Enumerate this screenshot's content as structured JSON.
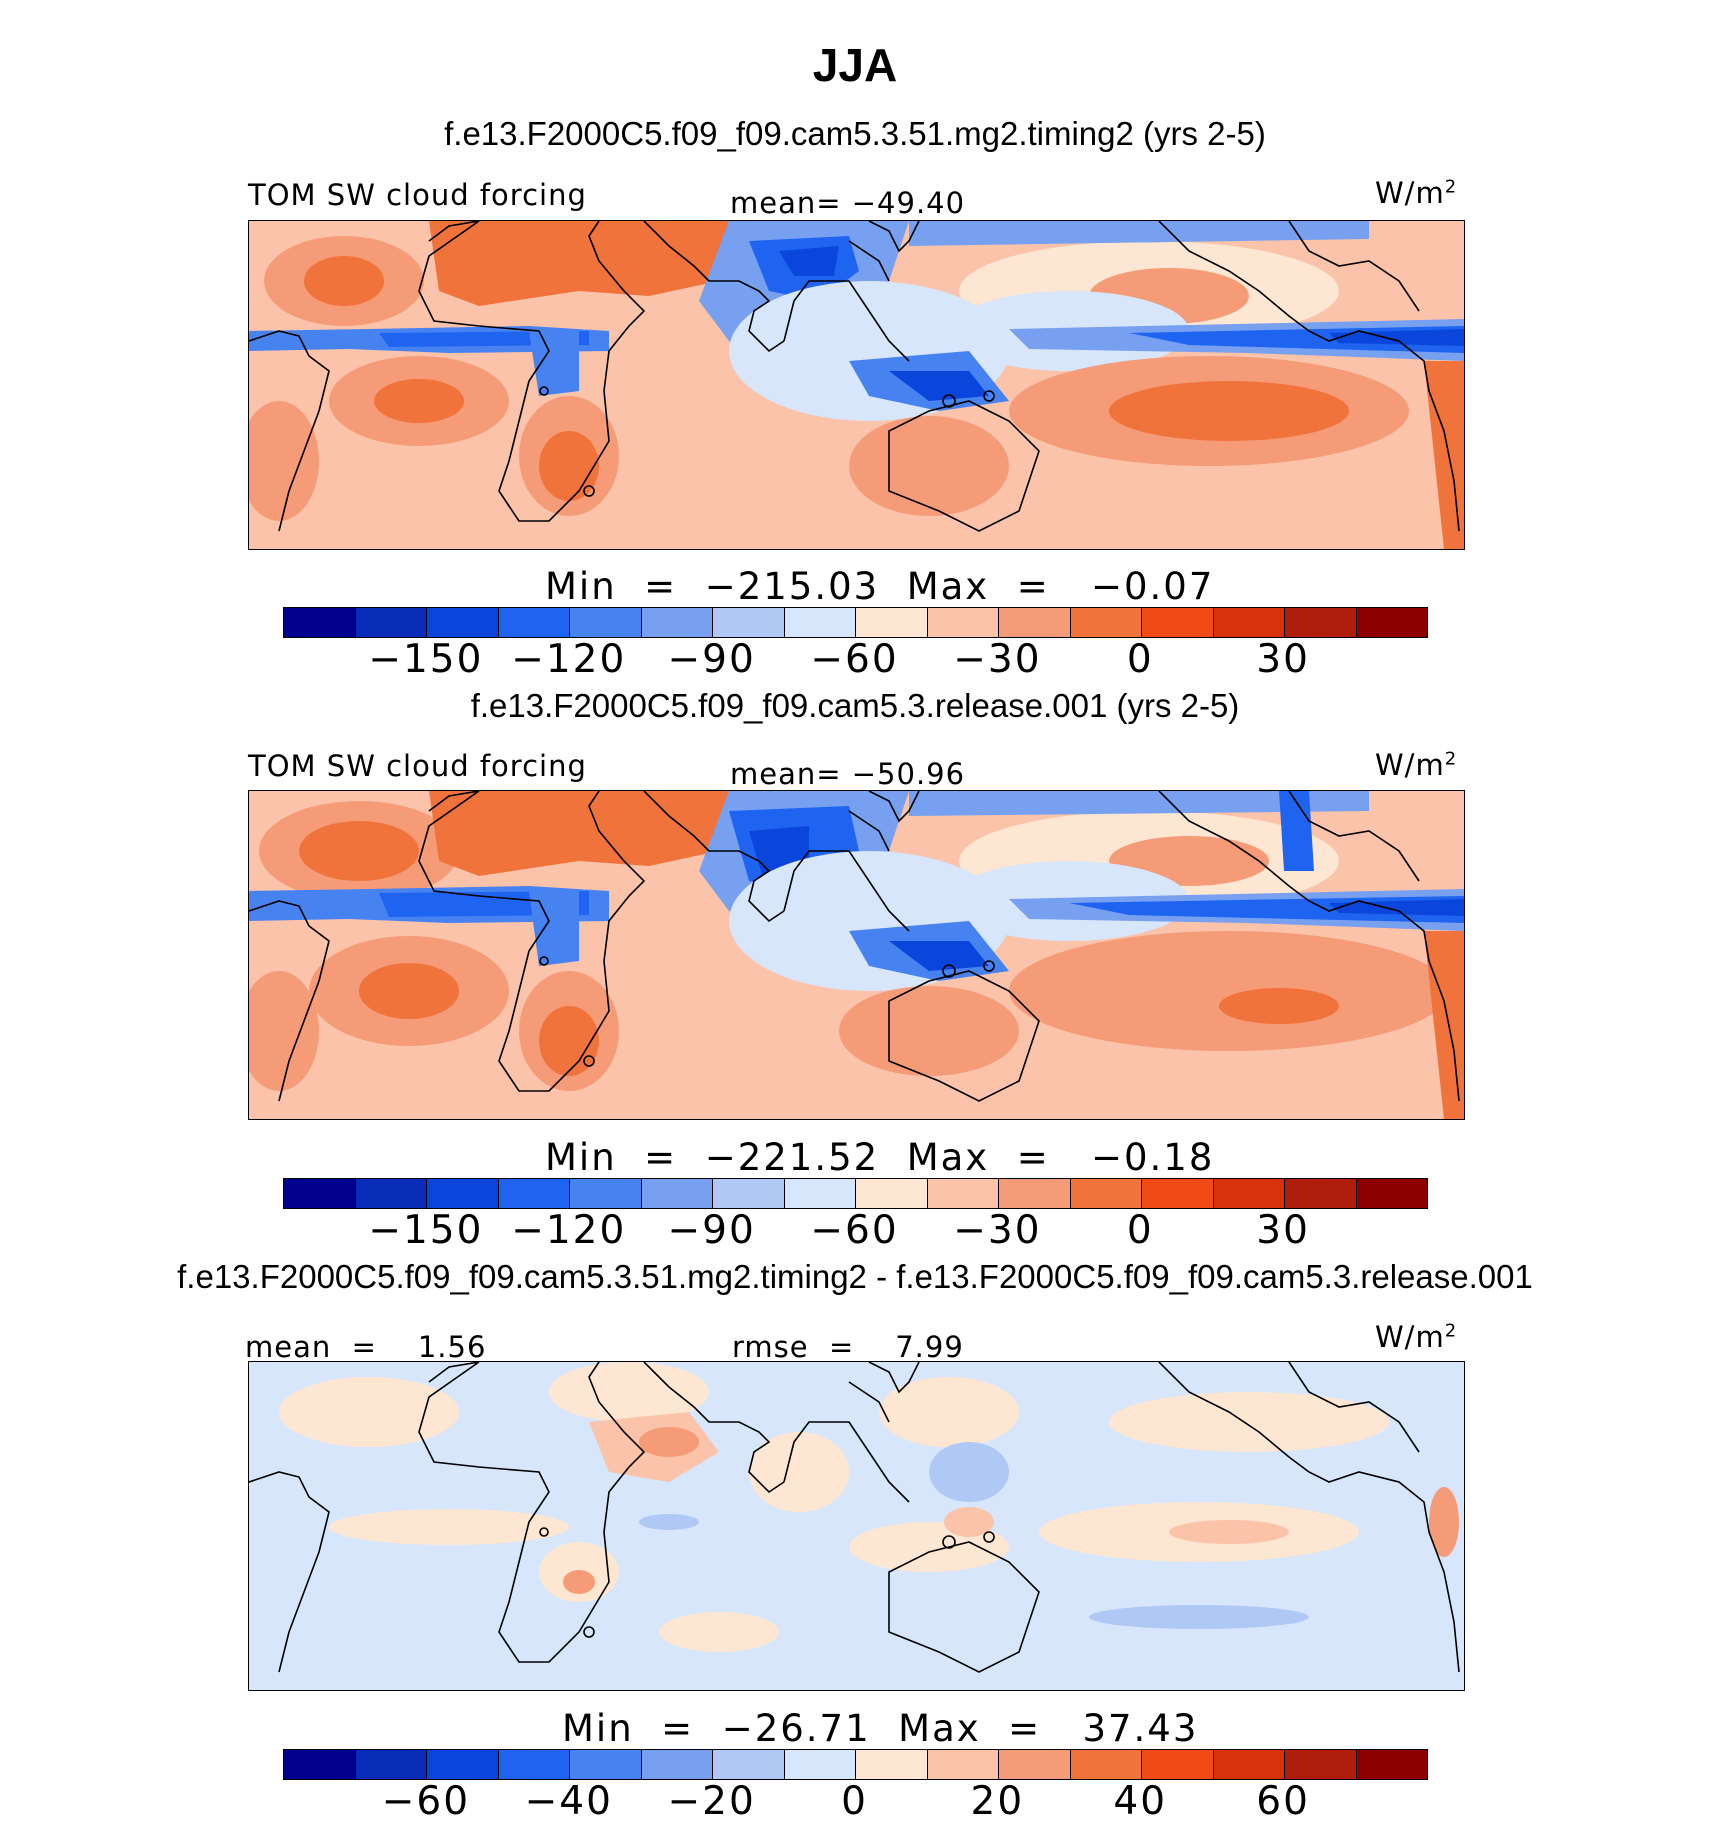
{
  "title": "JJA",
  "panels": [
    {
      "case": "f.e13.F2000C5.f09_f09.cam5.3.51.mg2.timing2 (yrs 2-5)",
      "left_label": "TOM SW cloud forcing",
      "center_label": "mean= −49.40",
      "units": "W/m",
      "units_sup": "2",
      "min_max": "Min  =  −215.03  Max  =   −0.07"
    },
    {
      "case": "f.e13.F2000C5.f09_f09.cam5.3.release.001 (yrs 2-5)",
      "left_label": "TOM SW cloud forcing",
      "center_label": "mean= −50.96",
      "units": "W/m",
      "units_sup": "2",
      "min_max": "Min  =  −221.52  Max  =   −0.18"
    },
    {
      "case": "f.e13.F2000C5.f09_f09.cam5.3.51.mg2.timing2 - f.e13.F2000C5.f09_f09.cam5.3.release.001",
      "left_label": "mean  =    1.56",
      "center_label": "rmse  =    7.99",
      "units": "W/m",
      "units_sup": "2",
      "min_max": "Min  =  −26.71  Max  =   37.43"
    }
  ],
  "colorbar_colors": [
    "#00008c",
    "#0a2db9",
    "#0a46dc",
    "#1e64f0",
    "#4682f0",
    "#78a0f0",
    "#afc8f5",
    "#d7e6fa",
    "#fde6d2",
    "#fac3aa",
    "#f59b78",
    "#f0733c",
    "#f04b14",
    "#d7320a",
    "#af1e0a",
    "#8c0000"
  ],
  "colorbar_ticks_main": [
    "−150",
    "−120",
    "−90",
    "−60",
    "−30",
    "0",
    "30"
  ],
  "colorbar_ticks_diff": [
    "−60",
    "−40",
    "−20",
    "0",
    "20",
    "40",
    "60"
  ],
  "chart_data": [
    {
      "type": "heatmap",
      "title": "f.e13.F2000C5.f09_f09.cam5.3.51.mg2.timing2 (yrs 2-5)",
      "variable": "TOM SW cloud forcing",
      "units": "W/m2",
      "season": "JJA",
      "mean": -49.4,
      "min": -215.03,
      "max": -0.07,
      "colorbar_levels": [
        -150,
        -120,
        -90,
        -60,
        -30,
        0,
        30
      ]
    },
    {
      "type": "heatmap",
      "title": "f.e13.F2000C5.f09_f09.cam5.3.release.001 (yrs 2-5)",
      "variable": "TOM SW cloud forcing",
      "units": "W/m2",
      "season": "JJA",
      "mean": -50.96,
      "min": -221.52,
      "max": -0.18,
      "colorbar_levels": [
        -150,
        -120,
        -90,
        -60,
        -30,
        0,
        30
      ]
    },
    {
      "type": "heatmap",
      "title": "f.e13.F2000C5.f09_f09.cam5.3.51.mg2.timing2 - f.e13.F2000C5.f09_f09.cam5.3.release.001",
      "units": "W/m2",
      "season": "JJA",
      "mean": 1.56,
      "rmse": 7.99,
      "min": -26.71,
      "max": 37.43,
      "colorbar_levels": [
        -60,
        -40,
        -20,
        0,
        20,
        40,
        60
      ]
    }
  ]
}
